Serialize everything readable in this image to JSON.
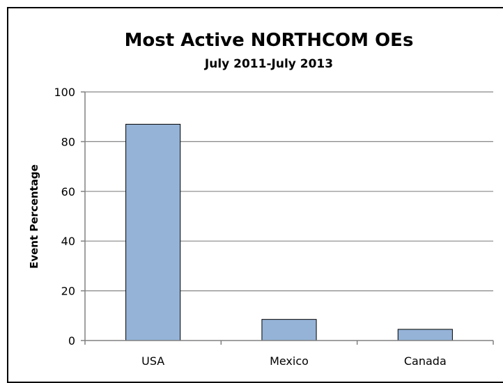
{
  "chart_data": {
    "type": "bar",
    "title": "Most Active NORTHCOM OEs",
    "subtitle": "July 2011-July 2013",
    "xlabel": "",
    "ylabel": "Event Percentage",
    "categories": [
      "USA",
      "Mexico",
      "Canada"
    ],
    "values": [
      87,
      8.5,
      4.5
    ],
    "ylim": [
      0,
      100
    ],
    "yticks": [
      0,
      20,
      40,
      60,
      80,
      100
    ],
    "grid": true,
    "legend": "none",
    "bar_color": "#95b3d7",
    "bar_edge_color": "#000000"
  }
}
